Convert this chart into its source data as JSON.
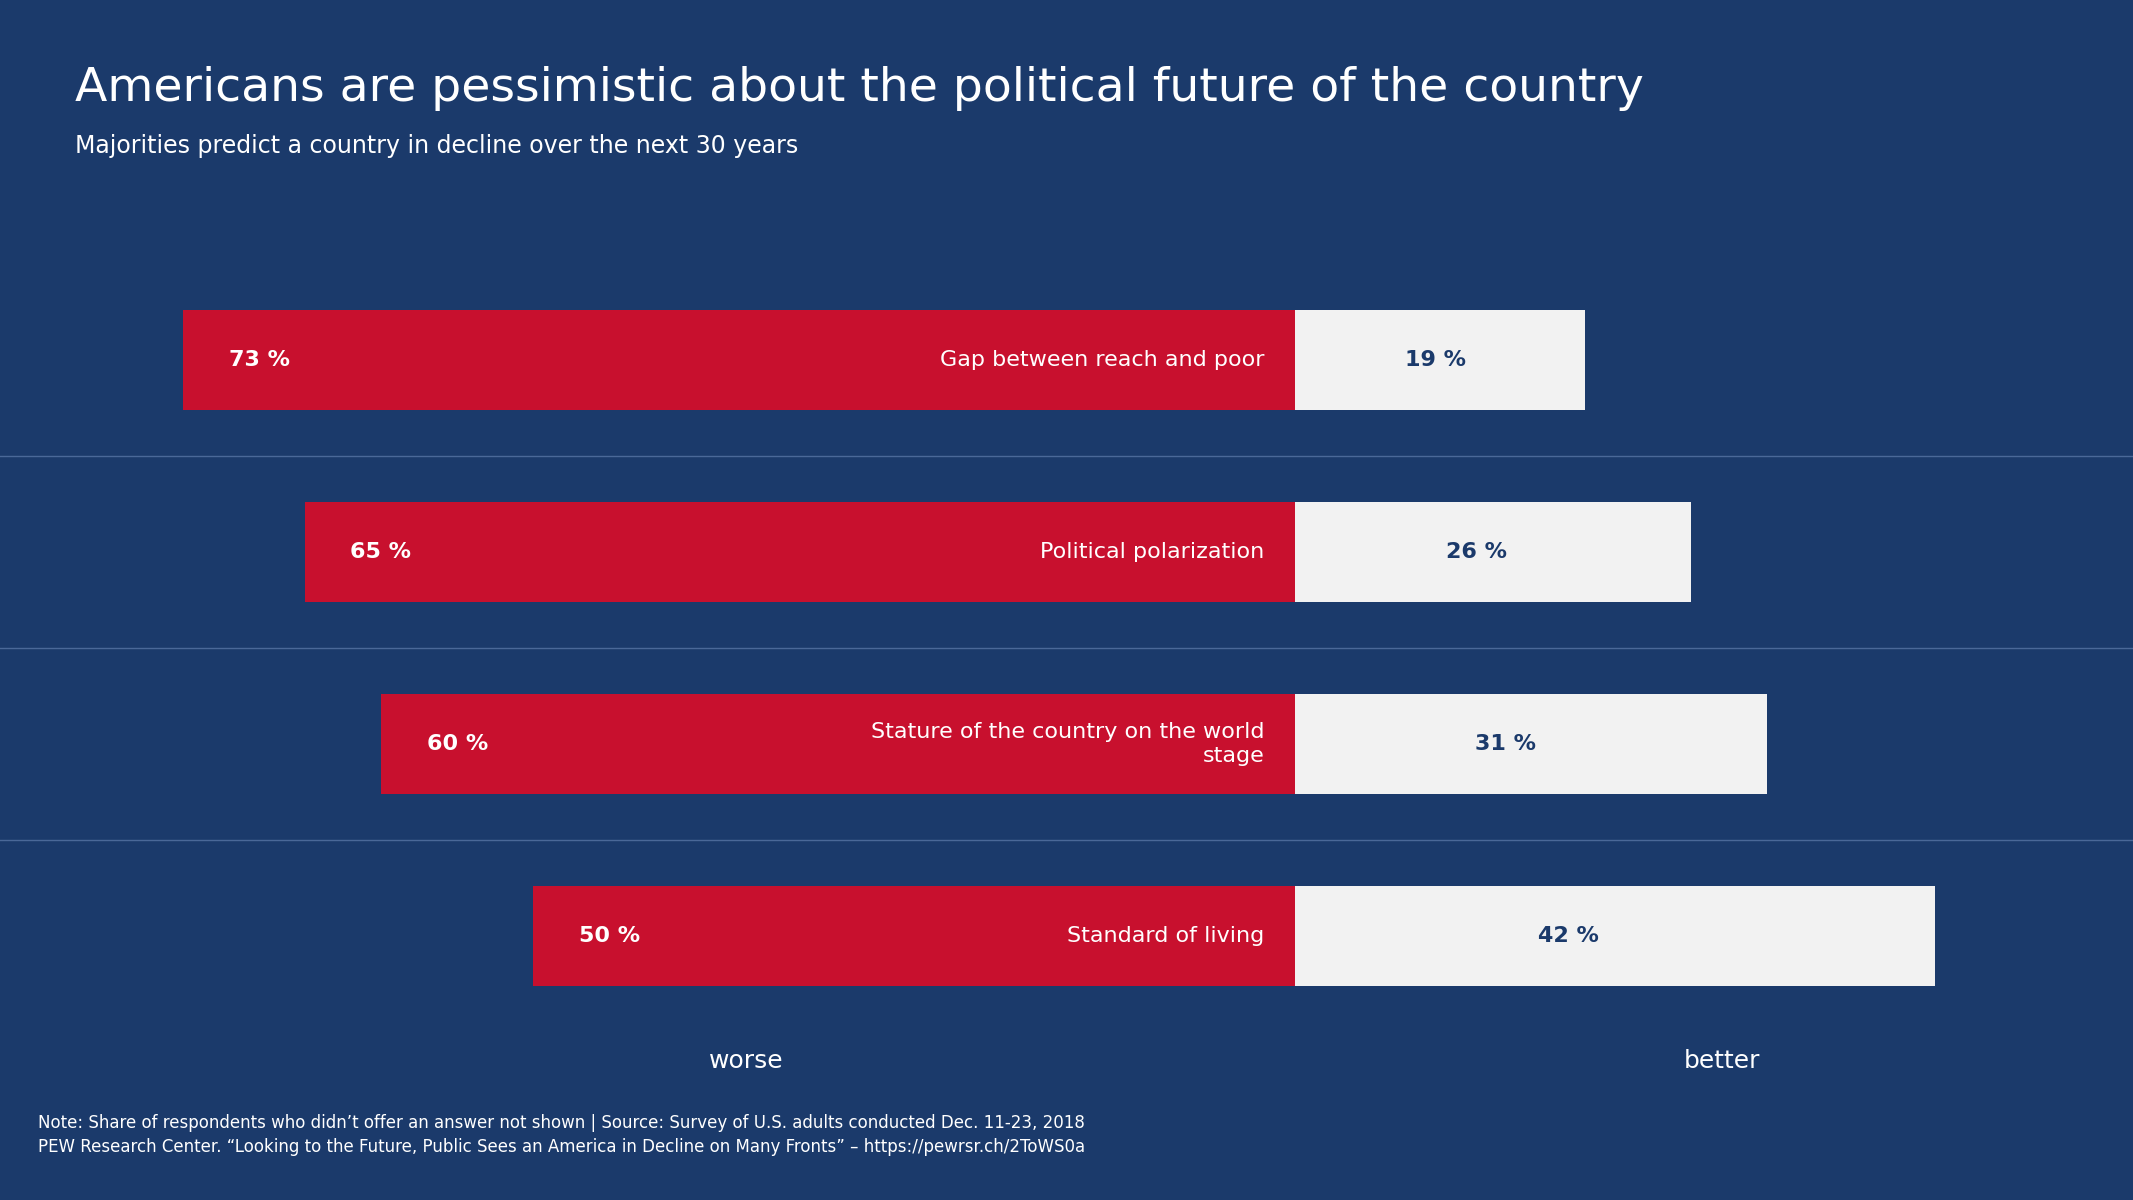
{
  "title": "Americans are pessimistic about the political future of the country",
  "subtitle": "Majorities predict a country in decline over the next 30 years",
  "background_color": "#1b3a6b",
  "red_color": "#c8102e",
  "white_color": "#f2f2f2",
  "text_color_white": "#ffffff",
  "text_color_blue": "#1b3a6b",
  "separator_color": "#4a6898",
  "categories": [
    "Gap between reach and poor",
    "Political polarization",
    "Stature of the country on the world\nstage",
    "Standard of living"
  ],
  "worse_values": [
    73,
    65,
    60,
    50
  ],
  "better_values": [
    19,
    26,
    31,
    42
  ],
  "worse_label": "worse",
  "better_label": "better",
  "footnote_line1": "Note: Share of respondents who didn’t offer an answer not shown | Source: Survey of U.S. adults conducted Dec. 11-23, 2018",
  "footnote_line2": "PEW Research Center. “Looking to the Future, Public Sees an America in Decline on Many Fronts” – https://pewrsr.ch/2ToWS0a",
  "max_worse": 73,
  "max_better": 42,
  "bar_height": 0.52,
  "title_fontsize": 34,
  "subtitle_fontsize": 17,
  "label_fontsize": 16,
  "value_fontsize": 16,
  "axis_label_fontsize": 18,
  "footnote_fontsize": 12
}
